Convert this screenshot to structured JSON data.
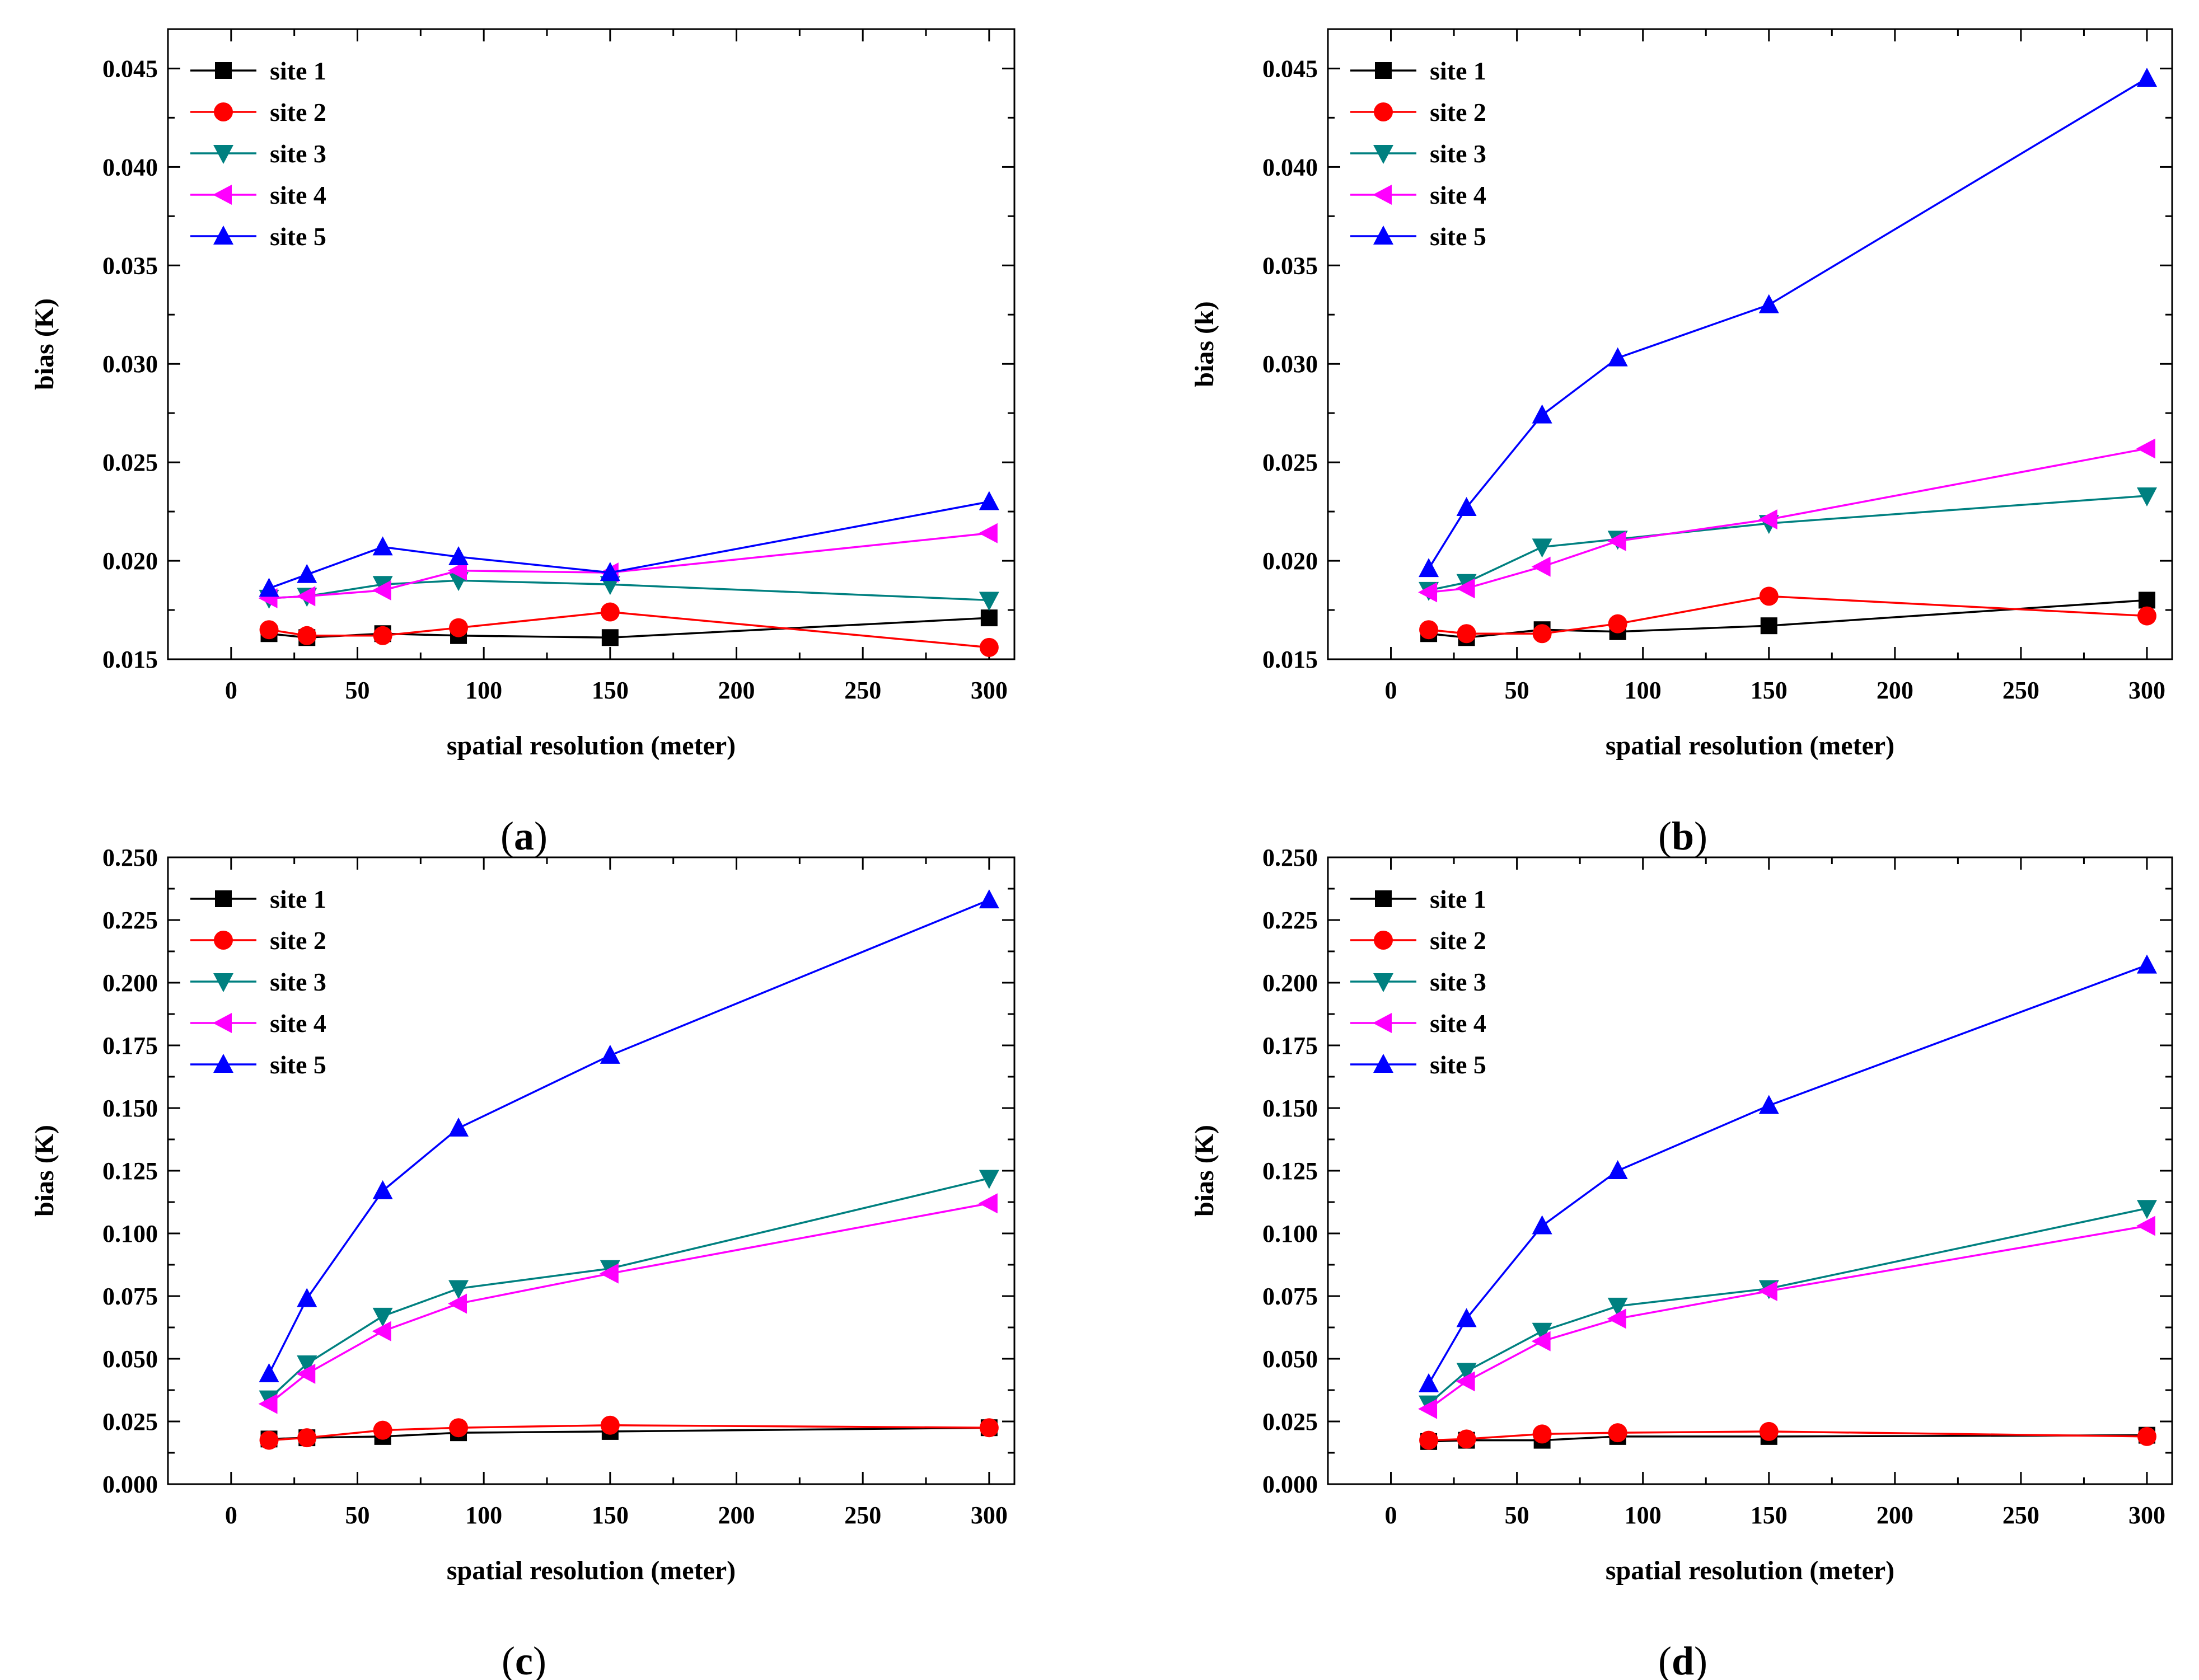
{
  "chart_data": [
    {
      "type": "line",
      "panel_label": "a",
      "xlabel": "spatial resolution (meter)",
      "ylabel": "bias (K)",
      "xlim": [
        -25,
        310
      ],
      "ylim": [
        0.015,
        0.047
      ],
      "xticks": [
        0,
        50,
        100,
        150,
        200,
        250,
        300
      ],
      "xtick_labels": [
        "0",
        "50",
        "100",
        "150",
        "200",
        "250",
        "300"
      ],
      "yticks": [
        0.015,
        0.02,
        0.025,
        0.03,
        0.035,
        0.04,
        0.045
      ],
      "ytick_labels": [
        "0.015",
        "0.020",
        "0.025",
        "0.030",
        "0.035",
        "0.040",
        "0.045"
      ],
      "legend_position": "top-left",
      "x": [
        15,
        30,
        60,
        90,
        150,
        300
      ],
      "series": [
        {
          "name": "site 1",
          "color": "#000000",
          "marker": "square",
          "values": [
            0.0163,
            0.0161,
            0.0163,
            0.0162,
            0.0161,
            0.0171
          ]
        },
        {
          "name": "site 2",
          "color": "#ff0000",
          "marker": "circle",
          "values": [
            0.0165,
            0.0162,
            0.0162,
            0.0166,
            0.0174,
            0.0156
          ]
        },
        {
          "name": "site 3",
          "color": "#008080",
          "marker": "triangle-down",
          "values": [
            0.0181,
            0.0182,
            0.0188,
            0.019,
            0.0188,
            0.018
          ]
        },
        {
          "name": "site 4",
          "color": "#ff00ff",
          "marker": "triangle-left",
          "values": [
            0.0181,
            0.0182,
            0.0185,
            0.0195,
            0.0194,
            0.0214
          ]
        },
        {
          "name": "site 5",
          "color": "#0000ff",
          "marker": "triangle-up",
          "values": [
            0.0186,
            0.0193,
            0.0207,
            0.0202,
            0.0194,
            0.023
          ]
        }
      ]
    },
    {
      "type": "line",
      "panel_label": "b",
      "xlabel": "spatial resolution (meter)",
      "ylabel": "bias (k)",
      "xlim": [
        -25,
        310
      ],
      "ylim": [
        0.015,
        0.047
      ],
      "xticks": [
        0,
        50,
        100,
        150,
        200,
        250,
        300
      ],
      "xtick_labels": [
        "0",
        "50",
        "100",
        "150",
        "200",
        "250",
        "300"
      ],
      "yticks": [
        0.015,
        0.02,
        0.025,
        0.03,
        0.035,
        0.04,
        0.045
      ],
      "ytick_labels": [
        "0.015",
        "0.020",
        "0.025",
        "0.030",
        "0.035",
        "0.040",
        "0.045"
      ],
      "legend_position": "top-left",
      "x": [
        15,
        30,
        60,
        90,
        150,
        300
      ],
      "series": [
        {
          "name": "site 1",
          "color": "#000000",
          "marker": "square",
          "values": [
            0.0163,
            0.0161,
            0.0165,
            0.0164,
            0.0167,
            0.018
          ]
        },
        {
          "name": "site 2",
          "color": "#ff0000",
          "marker": "circle",
          "values": [
            0.0165,
            0.0163,
            0.0163,
            0.0168,
            0.0182,
            0.0172
          ]
        },
        {
          "name": "site 3",
          "color": "#008080",
          "marker": "triangle-down",
          "values": [
            0.0185,
            0.0189,
            0.0207,
            0.0211,
            0.0219,
            0.0233
          ]
        },
        {
          "name": "site 4",
          "color": "#ff00ff",
          "marker": "triangle-left",
          "values": [
            0.0184,
            0.0186,
            0.0197,
            0.021,
            0.0221,
            0.0257
          ]
        },
        {
          "name": "site 5",
          "color": "#0000ff",
          "marker": "triangle-up",
          "values": [
            0.0196,
            0.0227,
            0.0274,
            0.0303,
            0.033,
            0.0445
          ]
        }
      ]
    },
    {
      "type": "line",
      "panel_label": "c",
      "xlabel": "spatial resolution (meter)",
      "ylabel": "bias (K)",
      "xlim": [
        -25,
        310
      ],
      "ylim": [
        0,
        0.25
      ],
      "xticks": [
        0,
        50,
        100,
        150,
        200,
        250,
        300
      ],
      "xtick_labels": [
        "0",
        "50",
        "100",
        "150",
        "200",
        "250",
        "300"
      ],
      "yticks": [
        0,
        0.025,
        0.05,
        0.075,
        0.1,
        0.125,
        0.15,
        0.175,
        0.2,
        0.225,
        0.25
      ],
      "ytick_labels": [
        "0.000",
        "0.025",
        "0.050",
        "0.075",
        "0.100",
        "0.125",
        "0.150",
        "0.175",
        "0.200",
        "0.225",
        "0.250"
      ],
      "legend_position": "top-left",
      "x": [
        15,
        30,
        60,
        90,
        150,
        300
      ],
      "series": [
        {
          "name": "site 1",
          "color": "#000000",
          "marker": "square",
          "values": [
            0.018,
            0.0185,
            0.019,
            0.0205,
            0.021,
            0.0225
          ]
        },
        {
          "name": "site 2",
          "color": "#ff0000",
          "marker": "circle",
          "values": [
            0.0175,
            0.0185,
            0.0215,
            0.0225,
            0.0235,
            0.0225
          ]
        },
        {
          "name": "site 3",
          "color": "#008080",
          "marker": "triangle-down",
          "values": [
            0.034,
            0.048,
            0.067,
            0.078,
            0.086,
            0.122
          ]
        },
        {
          "name": "site 4",
          "color": "#ff00ff",
          "marker": "triangle-left",
          "values": [
            0.032,
            0.044,
            0.061,
            0.072,
            0.084,
            0.112
          ]
        },
        {
          "name": "site 5",
          "color": "#0000ff",
          "marker": "triangle-up",
          "values": [
            0.044,
            0.074,
            0.117,
            0.142,
            0.171,
            0.233
          ]
        }
      ]
    },
    {
      "type": "line",
      "panel_label": "d",
      "xlabel": "spatial resolution (meter)",
      "ylabel": "bias (K)",
      "xlim": [
        -25,
        310
      ],
      "ylim": [
        0,
        0.25
      ],
      "xticks": [
        0,
        50,
        100,
        150,
        200,
        250,
        300
      ],
      "xtick_labels": [
        "0",
        "50",
        "100",
        "150",
        "200",
        "250",
        "300"
      ],
      "yticks": [
        0,
        0.025,
        0.05,
        0.075,
        0.1,
        0.125,
        0.15,
        0.175,
        0.2,
        0.225,
        0.25
      ],
      "ytick_labels": [
        "0.000",
        "0.025",
        "0.050",
        "0.075",
        "0.100",
        "0.125",
        "0.150",
        "0.175",
        "0.200",
        "0.225",
        "0.250"
      ],
      "legend_position": "top-left",
      "x": [
        15,
        30,
        60,
        90,
        150,
        300
      ],
      "series": [
        {
          "name": "site 1",
          "color": "#000000",
          "marker": "square",
          "values": [
            0.017,
            0.0175,
            0.0175,
            0.019,
            0.019,
            0.0195
          ]
        },
        {
          "name": "site 2",
          "color": "#ff0000",
          "marker": "circle",
          "values": [
            0.0175,
            0.018,
            0.02,
            0.0205,
            0.021,
            0.019
          ]
        },
        {
          "name": "site 3",
          "color": "#008080",
          "marker": "triangle-down",
          "values": [
            0.032,
            0.045,
            0.061,
            0.071,
            0.078,
            0.11
          ]
        },
        {
          "name": "site 4",
          "color": "#ff00ff",
          "marker": "triangle-left",
          "values": [
            0.03,
            0.041,
            0.057,
            0.066,
            0.077,
            0.103
          ]
        },
        {
          "name": "site 5",
          "color": "#0000ff",
          "marker": "triangle-up",
          "values": [
            0.04,
            0.066,
            0.103,
            0.125,
            0.151,
            0.207
          ]
        }
      ]
    }
  ]
}
